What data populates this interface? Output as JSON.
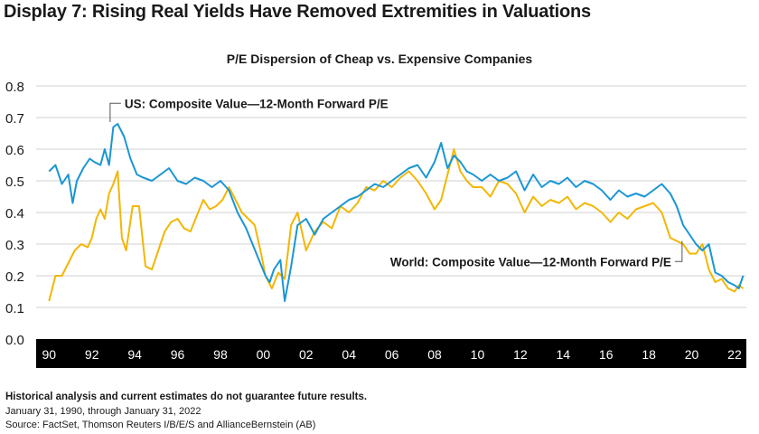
{
  "page": {
    "display_title": "Display 7: Rising Real Yields Have Removed Extremities in Valuations",
    "footnote_disclaimer": "Historical analysis and current estimates do not guarantee future results.",
    "footnote_period": "January 31, 1990, through January 31, 2022",
    "footnote_source": "Source: FactSet, Thomson Reuters I/B/E/S and AllianceBernstein (AB)"
  },
  "colors": {
    "us_series": "#1a96d4",
    "world_series": "#f2b705",
    "axis_band": "#000000",
    "gridline": "#d0d0d0",
    "text": "#1a1a1a"
  },
  "chart_data": {
    "type": "line",
    "title": "P/E Dispersion of Cheap vs. Expensive Companies",
    "xlabel": "",
    "ylabel": "",
    "ylim": [
      0,
      0.8
    ],
    "xlim": [
      1989.65,
      2022.55
    ],
    "y_ticks": [
      "0.0",
      "0.1",
      "0.2",
      "0.3",
      "0.4",
      "0.5",
      "0.6",
      "0.7",
      "0.8"
    ],
    "x_ticks": [
      {
        "x": 1990,
        "label": "90"
      },
      {
        "x": 1992,
        "label": "92"
      },
      {
        "x": 1994,
        "label": "94"
      },
      {
        "x": 1996,
        "label": "96"
      },
      {
        "x": 1998,
        "label": "98"
      },
      {
        "x": 2000,
        "label": "00"
      },
      {
        "x": 2002,
        "label": "02"
      },
      {
        "x": 2004,
        "label": "04"
      },
      {
        "x": 2006,
        "label": "06"
      },
      {
        "x": 2008,
        "label": "08"
      },
      {
        "x": 2010,
        "label": "10"
      },
      {
        "x": 2012,
        "label": "12"
      },
      {
        "x": 2014,
        "label": "14"
      },
      {
        "x": 2016,
        "label": "16"
      },
      {
        "x": 2018,
        "label": "18"
      },
      {
        "x": 2020,
        "label": "20"
      },
      {
        "x": 2022,
        "label": "22"
      }
    ],
    "grid": "horizontal",
    "series": [
      {
        "name": "US: Composite Value—12-Month Forward P/E",
        "color": "#1a96d4",
        "x": [
          1990.0,
          1990.3,
          1990.6,
          1990.9,
          1991.1,
          1991.3,
          1991.6,
          1991.9,
          1992.1,
          1992.4,
          1992.6,
          1992.8,
          1993.0,
          1993.2,
          1993.5,
          1993.8,
          1994.1,
          1994.4,
          1994.8,
          1995.2,
          1995.6,
          1996.0,
          1996.4,
          1996.8,
          1997.2,
          1997.6,
          1998.0,
          1998.4,
          1998.8,
          1999.2,
          1999.5,
          1999.8,
          2000.1,
          2000.3,
          2000.5,
          2000.8,
          2001.0,
          2001.3,
          2001.6,
          2002.0,
          2002.4,
          2002.8,
          2003.2,
          2003.6,
          2004.0,
          2004.4,
          2004.8,
          2005.2,
          2005.6,
          2006.0,
          2006.4,
          2006.8,
          2007.2,
          2007.6,
          2008.0,
          2008.3,
          2008.6,
          2008.9,
          2009.2,
          2009.5,
          2009.8,
          2010.2,
          2010.6,
          2011.0,
          2011.4,
          2011.8,
          2012.2,
          2012.6,
          2013.0,
          2013.4,
          2013.8,
          2014.2,
          2014.6,
          2015.0,
          2015.4,
          2015.8,
          2016.2,
          2016.6,
          2017.0,
          2017.4,
          2017.8,
          2018.2,
          2018.6,
          2019.0,
          2019.3,
          2019.6,
          2019.9,
          2020.2,
          2020.5,
          2020.8,
          2021.1,
          2021.4,
          2021.7,
          2022.0,
          2022.2,
          2022.4
        ],
        "y": [
          0.53,
          0.55,
          0.49,
          0.52,
          0.43,
          0.5,
          0.54,
          0.57,
          0.56,
          0.55,
          0.6,
          0.55,
          0.67,
          0.68,
          0.64,
          0.57,
          0.52,
          0.51,
          0.5,
          0.52,
          0.54,
          0.5,
          0.49,
          0.51,
          0.5,
          0.48,
          0.5,
          0.47,
          0.4,
          0.35,
          0.3,
          0.25,
          0.2,
          0.18,
          0.22,
          0.25,
          0.12,
          0.23,
          0.36,
          0.38,
          0.33,
          0.38,
          0.4,
          0.42,
          0.44,
          0.45,
          0.47,
          0.49,
          0.48,
          0.5,
          0.52,
          0.54,
          0.55,
          0.51,
          0.56,
          0.62,
          0.54,
          0.58,
          0.56,
          0.53,
          0.52,
          0.5,
          0.52,
          0.5,
          0.51,
          0.53,
          0.47,
          0.52,
          0.48,
          0.5,
          0.49,
          0.51,
          0.48,
          0.5,
          0.49,
          0.47,
          0.44,
          0.47,
          0.45,
          0.46,
          0.45,
          0.47,
          0.49,
          0.46,
          0.42,
          0.36,
          0.33,
          0.3,
          0.28,
          0.3,
          0.21,
          0.2,
          0.18,
          0.17,
          0.16,
          0.2
        ]
      },
      {
        "name": "World: Composite Value—12-Month Forward P/E",
        "color": "#f2b705",
        "x": [
          1990.0,
          1990.3,
          1990.6,
          1990.9,
          1991.2,
          1991.5,
          1991.8,
          1992.0,
          1992.2,
          1992.4,
          1992.6,
          1992.8,
          1993.0,
          1993.2,
          1993.4,
          1993.6,
          1993.9,
          1994.2,
          1994.5,
          1994.8,
          1995.1,
          1995.4,
          1995.7,
          1996.0,
          1996.3,
          1996.6,
          1996.9,
          1997.2,
          1997.5,
          1997.8,
          1998.1,
          1998.4,
          1998.7,
          1999.0,
          1999.3,
          1999.6,
          1999.9,
          2000.1,
          2000.4,
          2000.7,
          2001.0,
          2001.3,
          2001.6,
          2002.0,
          2002.4,
          2002.8,
          2003.2,
          2003.6,
          2004.0,
          2004.4,
          2004.8,
          2005.2,
          2005.6,
          2006.0,
          2006.4,
          2006.8,
          2007.2,
          2007.6,
          2008.0,
          2008.3,
          2008.6,
          2008.9,
          2009.2,
          2009.5,
          2009.8,
          2010.2,
          2010.6,
          2011.0,
          2011.4,
          2011.8,
          2012.2,
          2012.6,
          2013.0,
          2013.4,
          2013.8,
          2014.2,
          2014.6,
          2015.0,
          2015.4,
          2015.8,
          2016.2,
          2016.6,
          2017.0,
          2017.4,
          2017.8,
          2018.2,
          2018.6,
          2019.0,
          2019.3,
          2019.6,
          2019.9,
          2020.2,
          2020.5,
          2020.8,
          2021.1,
          2021.4,
          2021.7,
          2022.0,
          2022.2,
          2022.4
        ],
        "y": [
          0.12,
          0.2,
          0.2,
          0.24,
          0.28,
          0.3,
          0.29,
          0.32,
          0.38,
          0.41,
          0.38,
          0.46,
          0.49,
          0.53,
          0.32,
          0.28,
          0.42,
          0.42,
          0.23,
          0.22,
          0.28,
          0.34,
          0.37,
          0.38,
          0.35,
          0.34,
          0.39,
          0.44,
          0.41,
          0.42,
          0.44,
          0.48,
          0.44,
          0.4,
          0.38,
          0.36,
          0.27,
          0.2,
          0.16,
          0.21,
          0.19,
          0.36,
          0.4,
          0.28,
          0.34,
          0.37,
          0.35,
          0.42,
          0.4,
          0.43,
          0.48,
          0.47,
          0.5,
          0.48,
          0.51,
          0.53,
          0.5,
          0.46,
          0.41,
          0.44,
          0.52,
          0.6,
          0.53,
          0.5,
          0.48,
          0.48,
          0.45,
          0.5,
          0.49,
          0.46,
          0.4,
          0.45,
          0.42,
          0.44,
          0.43,
          0.45,
          0.41,
          0.43,
          0.42,
          0.4,
          0.37,
          0.4,
          0.38,
          0.41,
          0.42,
          0.43,
          0.4,
          0.32,
          0.31,
          0.3,
          0.27,
          0.27,
          0.3,
          0.22,
          0.18,
          0.19,
          0.16,
          0.15,
          0.17,
          0.16
        ]
      }
    ],
    "annotations": [
      {
        "text": "US: Composite Value—12-Month Forward P/E",
        "series": 0
      },
      {
        "text": "World: Composite Value—12-Month Forward P/E",
        "series": 1
      }
    ]
  }
}
